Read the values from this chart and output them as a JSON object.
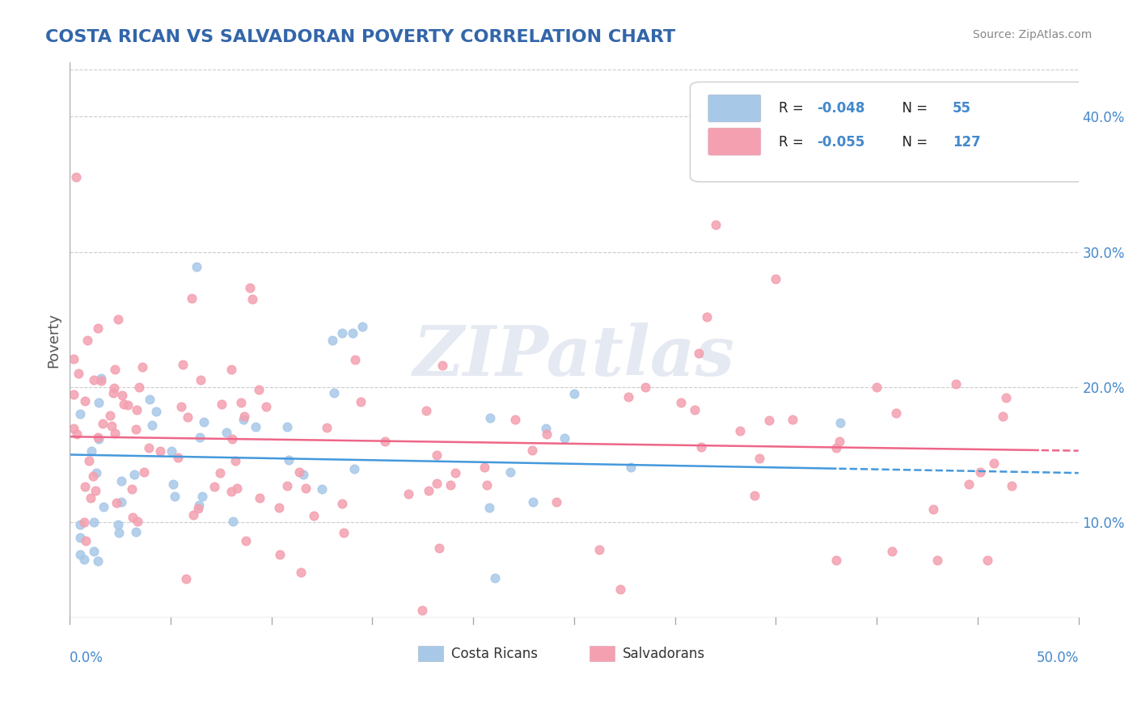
{
  "title": "COSTA RICAN VS SALVADORAN POVERTY CORRELATION CHART",
  "source": "Source: ZipAtlas.com",
  "ylabel": "Poverty",
  "xmin": 0.0,
  "xmax": 0.5,
  "ymin": 0.03,
  "ymax": 0.44,
  "yticks": [
    0.1,
    0.2,
    0.3,
    0.4
  ],
  "ytick_labels": [
    "10.0%",
    "20.0%",
    "30.0%",
    "40.0%"
  ],
  "costa_rican_color": "#a8c8e8",
  "salvadoran_color": "#f4a0b0",
  "trend_cr_color": "#4499dd",
  "trend_sv_color": "#ee6688",
  "R_cr": -0.048,
  "N_cr": 55,
  "R_sv": -0.055,
  "N_sv": 127,
  "watermark": "ZIPatlas",
  "background_color": "#ffffff",
  "grid_color": "#cccccc",
  "title_color": "#3366aa",
  "source_color": "#888888"
}
